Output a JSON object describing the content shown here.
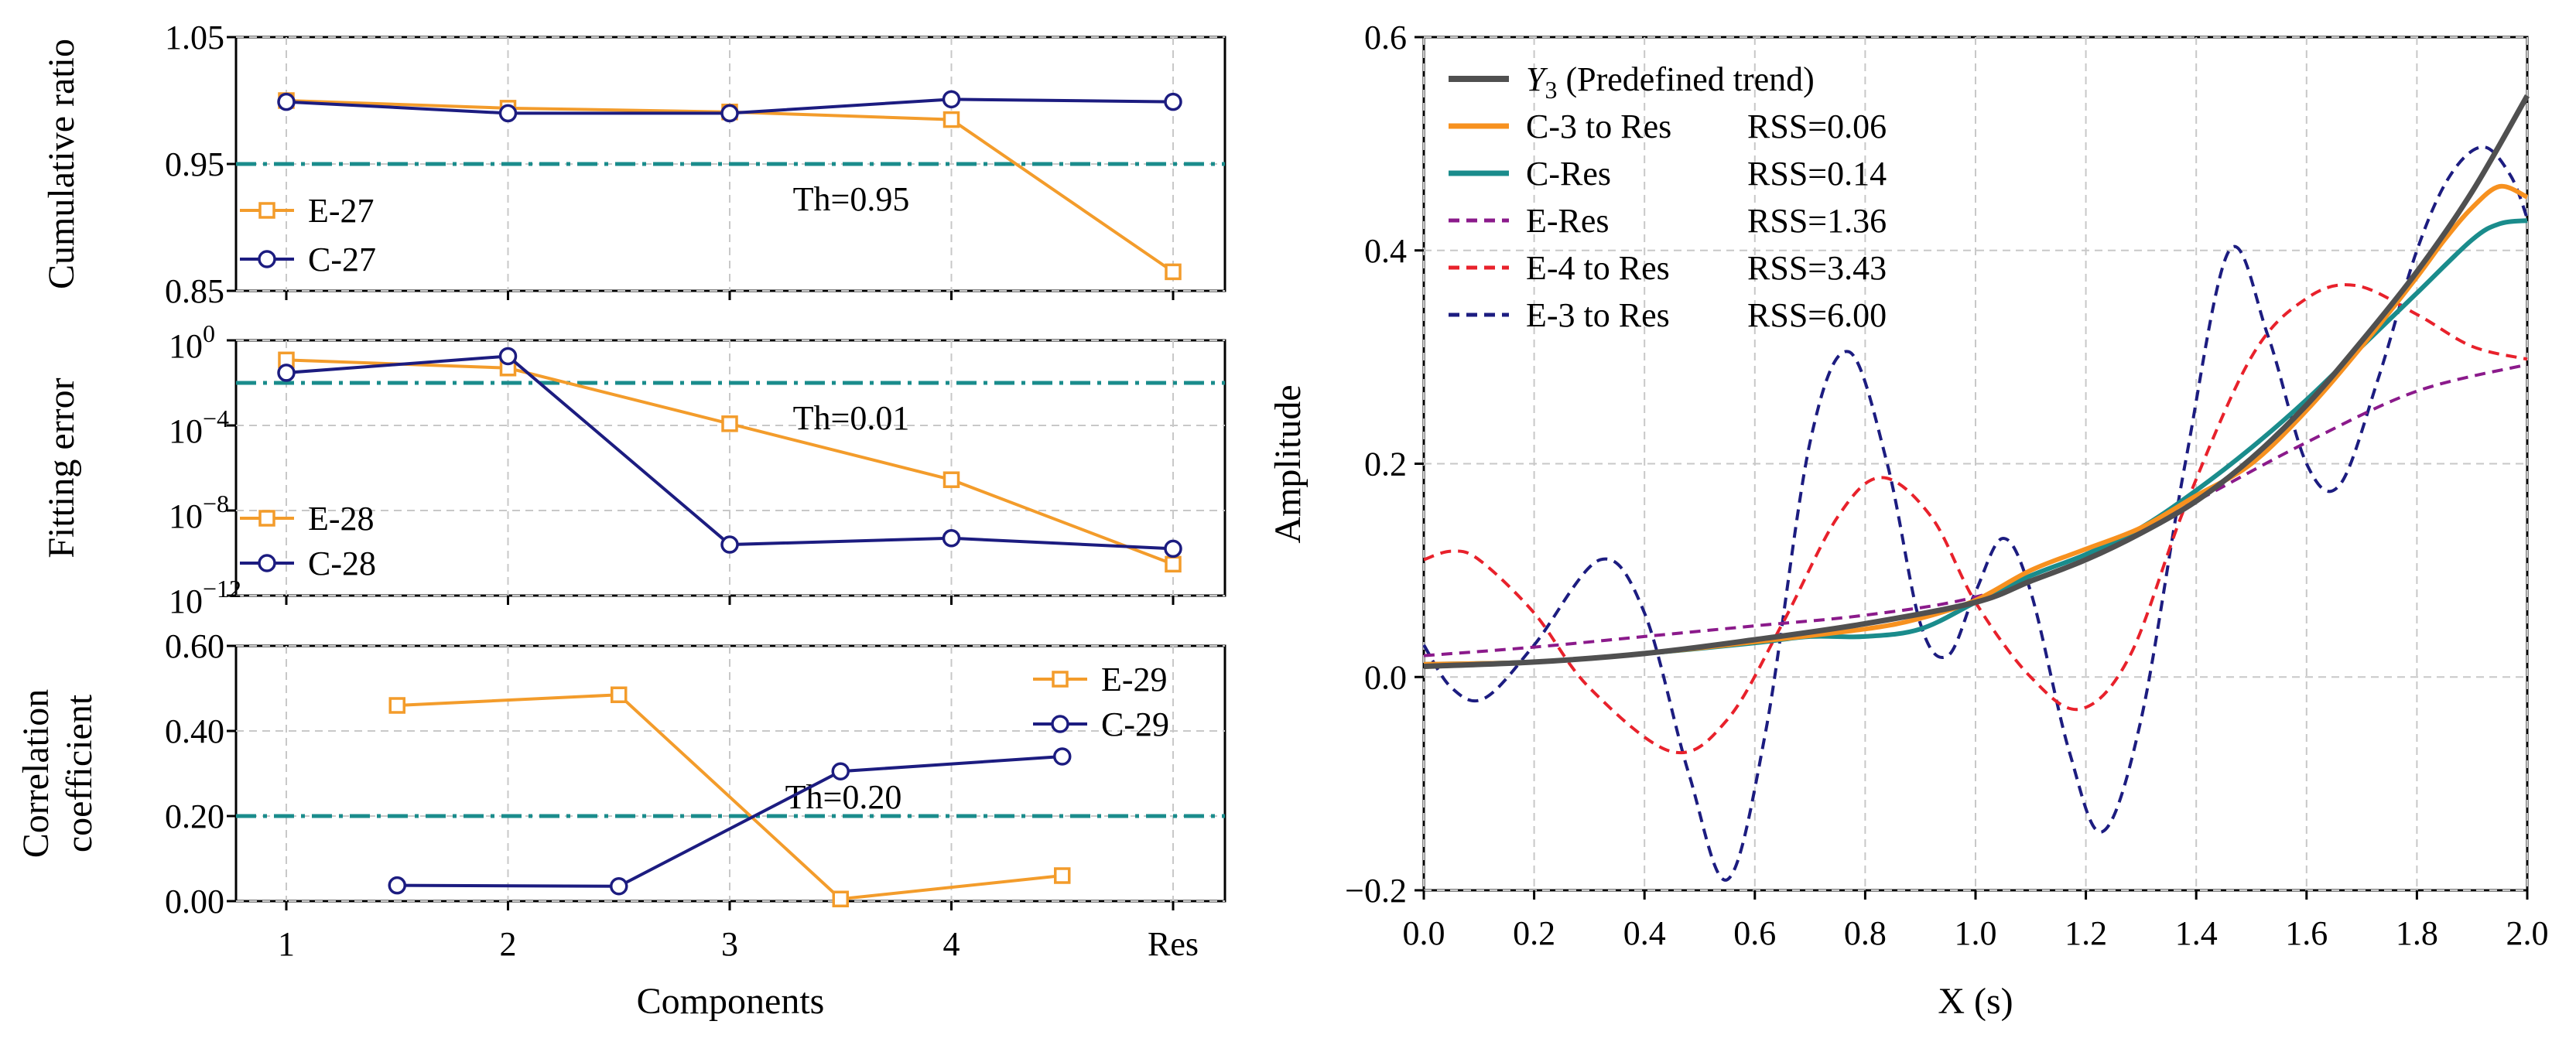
{
  "chart_data": [
    {
      "type": "line",
      "panel": "top-left",
      "ylabel": "Cumulative ratio",
      "ylim": [
        0.85,
        1.05
      ],
      "yscale": "linear",
      "yticks": [
        "0.85",
        "0.95",
        "1.05"
      ],
      "categories": [
        "1",
        "2",
        "3",
        "4",
        "Res"
      ],
      "threshold": 0.95,
      "threshold_label": "Th=0.95",
      "legend_position": "lower-left",
      "series": [
        {
          "name": "E-27",
          "color": "#f39c2b",
          "marker": "square",
          "x": [
            1,
            2,
            3,
            4,
            5
          ],
          "values": [
            1.0,
            0.994,
            0.991,
            0.985,
            0.865
          ]
        },
        {
          "name": "C-27",
          "color": "#1c1c80",
          "marker": "circle",
          "x": [
            1,
            2,
            3,
            4,
            5
          ],
          "values": [
            0.999,
            0.99,
            0.99,
            1.001,
            0.999
          ]
        }
      ]
    },
    {
      "type": "line",
      "panel": "middle-left",
      "ylabel": "Fitting error",
      "ylim_log10": [
        -12,
        0
      ],
      "yscale": "log",
      "yticks": [
        {
          "base": "10",
          "exp": "0"
        },
        {
          "base": "10",
          "exp": "−4"
        },
        {
          "base": "10",
          "exp": "−8"
        },
        {
          "base": "10",
          "exp": "−12"
        }
      ],
      "categories": [
        "1",
        "2",
        "3",
        "4",
        "Res"
      ],
      "threshold": 0.01,
      "threshold_label": "Th=0.01",
      "legend_position": "lower-left",
      "series": [
        {
          "name": "E-28",
          "color": "#f39c2b",
          "marker": "square",
          "x": [
            1,
            2,
            3,
            4,
            5
          ],
          "values": [
            0.12,
            0.05,
            0.00012,
            2.8e-07,
            3e-11
          ]
        },
        {
          "name": "C-28",
          "color": "#1c1c80",
          "marker": "circle",
          "x": [
            1,
            2,
            3,
            4,
            5
          ],
          "values": [
            0.03,
            0.18,
            2.5e-10,
            5e-10,
            1.6e-10
          ]
        }
      ]
    },
    {
      "type": "line",
      "panel": "bottom-left",
      "ylabel": "Correlation coefficient",
      "ylabel_lines": [
        "Correlation",
        "coefficient"
      ],
      "xlabel": "Components",
      "ylim": [
        0,
        0.6
      ],
      "yscale": "linear",
      "yticks": [
        "0.00",
        "0.20",
        "0.40",
        "0.60"
      ],
      "categories": [
        "1",
        "2",
        "3",
        "4",
        "Res"
      ],
      "threshold": 0.2,
      "threshold_label": "Th=0.20",
      "legend_position": "top-right",
      "series": [
        {
          "name": "E-29",
          "color": "#f39c2b",
          "marker": "square",
          "x": [
            1.5,
            2.5,
            3.5,
            4.5
          ],
          "values": [
            0.46,
            0.485,
            0.005,
            0.06
          ]
        },
        {
          "name": "C-29",
          "color": "#1c1c80",
          "marker": "circle",
          "x": [
            1.5,
            2.5,
            3.5,
            4.5
          ],
          "values": [
            0.037,
            0.035,
            0.305,
            0.34
          ]
        }
      ]
    },
    {
      "type": "line",
      "panel": "right",
      "xlabel": "X (s)",
      "ylabel": "Amplitude",
      "xlim": [
        0,
        2
      ],
      "ylim": [
        -0.2,
        0.6
      ],
      "xticks": [
        "0.0",
        "0.2",
        "0.4",
        "0.6",
        "0.8",
        "1.0",
        "1.2",
        "1.4",
        "1.6",
        "1.8",
        "2.0"
      ],
      "yticks": [
        "−0.2",
        "0.0",
        "0.2",
        "0.4",
        "0.6"
      ],
      "legend_position": "top-left",
      "series": [
        {
          "name_main": "Y",
          "name_sub": "3",
          "name_rest": " (Predefined trend)",
          "rss": "",
          "color": "#505050",
          "dash": "solid",
          "width": 7,
          "x": [
            0,
            0.2,
            0.4,
            0.6,
            0.8,
            1.0,
            1.1,
            1.2,
            1.3,
            1.4,
            1.5,
            1.6,
            1.7,
            1.8,
            1.9,
            2.0
          ],
          "values": [
            0.01,
            0.014,
            0.022,
            0.035,
            0.05,
            0.07,
            0.09,
            0.11,
            0.135,
            0.165,
            0.205,
            0.255,
            0.315,
            0.38,
            0.455,
            0.545
          ]
        },
        {
          "name": "C-3 to Res",
          "rss": "RSS=0.06",
          "color": "#f7911f",
          "dash": "solid",
          "width": 6,
          "x": [
            0,
            0.2,
            0.4,
            0.6,
            0.8,
            0.9,
            1.0,
            1.1,
            1.2,
            1.3,
            1.4,
            1.5,
            1.6,
            1.7,
            1.8,
            1.85,
            1.9,
            1.95,
            2.0
          ],
          "values": [
            0.012,
            0.014,
            0.022,
            0.033,
            0.045,
            0.055,
            0.072,
            0.1,
            0.12,
            0.14,
            0.17,
            0.2,
            0.25,
            0.31,
            0.375,
            0.41,
            0.44,
            0.46,
            0.45
          ]
        },
        {
          "name": "C-Res",
          "rss": "RSS=0.14",
          "color": "#1a8c8c",
          "dash": "solid",
          "width": 6,
          "x": [
            0,
            0.2,
            0.4,
            0.6,
            0.7,
            0.8,
            0.9,
            1.0,
            1.1,
            1.2,
            1.3,
            1.4,
            1.5,
            1.6,
            1.7,
            1.8,
            1.9,
            1.95,
            2.0
          ],
          "values": [
            0.012,
            0.014,
            0.022,
            0.032,
            0.038,
            0.038,
            0.045,
            0.07,
            0.095,
            0.115,
            0.14,
            0.175,
            0.215,
            0.26,
            0.31,
            0.36,
            0.41,
            0.425,
            0.428
          ]
        },
        {
          "name": "E-Res",
          "rss": "RSS=1.36",
          "color": "#8b1a8b",
          "dash": "dash",
          "width": 4,
          "x": [
            0,
            0.2,
            0.4,
            0.6,
            0.8,
            1.0,
            1.2,
            1.4,
            1.6,
            1.8,
            2.0
          ],
          "values": [
            0.02,
            0.028,
            0.038,
            0.048,
            0.058,
            0.075,
            0.11,
            0.165,
            0.22,
            0.268,
            0.293
          ]
        },
        {
          "name": "E-4 to Res",
          "rss": "RSS=3.43",
          "color": "#e8212b",
          "dash": "dash",
          "width": 4,
          "x": [
            0,
            0.05,
            0.1,
            0.2,
            0.3,
            0.45,
            0.55,
            0.65,
            0.75,
            0.83,
            0.92,
            1.0,
            1.1,
            1.19,
            1.28,
            1.38,
            1.5,
            1.6,
            1.69,
            1.8,
            1.9,
            2.0
          ],
          "values": [
            0.11,
            0.118,
            0.11,
            0.06,
            -0.01,
            -0.07,
            -0.04,
            0.05,
            0.15,
            0.187,
            0.15,
            0.07,
            0.0,
            -0.03,
            0.02,
            0.16,
            0.3,
            0.355,
            0.367,
            0.34,
            0.31,
            0.298
          ]
        },
        {
          "name": "E-3 to Res",
          "rss": "RSS=6.00",
          "color": "#1c1c80",
          "dash": "dash",
          "width": 4,
          "x": [
            0,
            0.05,
            0.11,
            0.2,
            0.32,
            0.4,
            0.48,
            0.55,
            0.62,
            0.7,
            0.77,
            0.84,
            0.9,
            0.95,
            1.0,
            1.05,
            1.1,
            1.17,
            1.23,
            1.3,
            1.38,
            1.46,
            1.53,
            1.6,
            1.66,
            1.73,
            1.8,
            1.86,
            1.92,
            1.97,
            2.0
          ],
          "values": [
            0.03,
            -0.01,
            -0.02,
            0.03,
            0.11,
            0.06,
            -0.09,
            -0.19,
            -0.05,
            0.22,
            0.305,
            0.2,
            0.05,
            0.02,
            0.08,
            0.13,
            0.08,
            -0.07,
            -0.145,
            -0.04,
            0.2,
            0.4,
            0.32,
            0.2,
            0.18,
            0.28,
            0.4,
            0.47,
            0.497,
            0.47,
            0.43
          ]
        }
      ]
    }
  ]
}
